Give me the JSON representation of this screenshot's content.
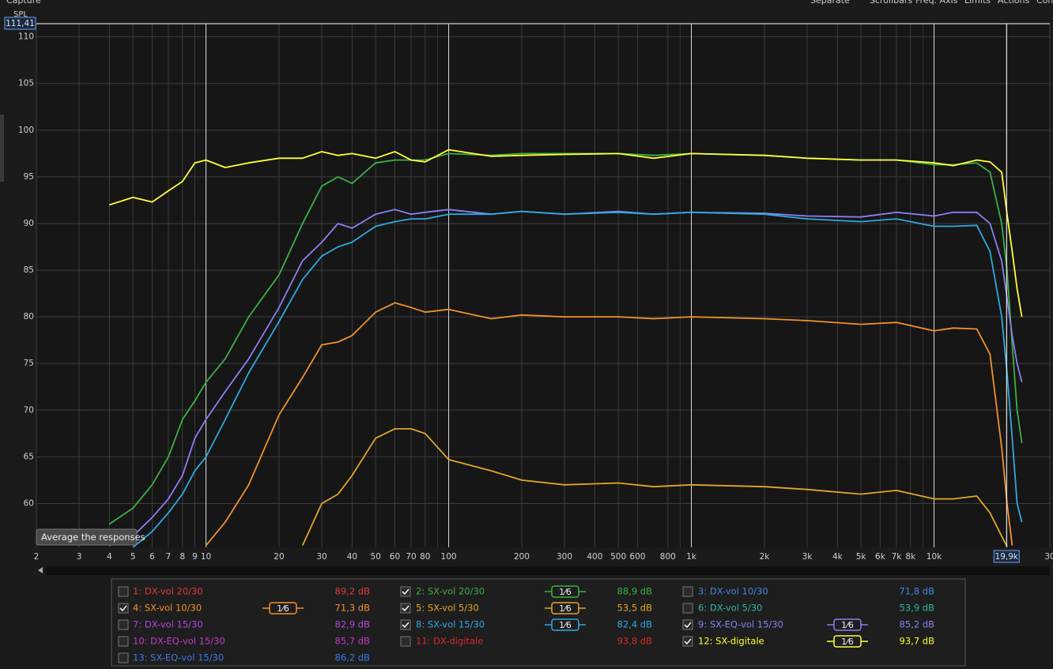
{
  "ui": {
    "menu": [
      "Capture",
      "Separate",
      "Scrollbars",
      "Freq. Axis",
      "Limits",
      "Actions",
      "Con"
    ],
    "y_axis_name": "SPL",
    "tooltip": "Average the responses"
  },
  "responses": [
    {
      "label": "1: DX-vol 20/30",
      "color": "#e03a3a",
      "checked": false,
      "level": "89,2 dB"
    },
    {
      "label": "2: SX-vol 20/30",
      "color": "#3cb043",
      "checked": true,
      "smoothing": "1⁄6",
      "level": "88,9 dB"
    },
    {
      "label": "3: DX-vol 10/30",
      "color": "#3f86e0",
      "checked": false,
      "level": "71,8 dB"
    },
    {
      "label": "4: SX-vol 10/30",
      "color": "#f0922e",
      "checked": true,
      "smoothing": "1⁄6",
      "level": "71,3 dB"
    },
    {
      "label": "5: SX-vol 5/30",
      "color": "#e3a52c",
      "checked": true,
      "smoothing": "1⁄6",
      "level": "53,5 dB"
    },
    {
      "label": "6: DX-vol 5/30",
      "color": "#2fb89c",
      "checked": false,
      "level": "53,9 dB"
    },
    {
      "label": "7: DX-vol 15/30",
      "color": "#b048e0",
      "checked": false,
      "level": "82,9 dB"
    },
    {
      "label": "8: SX-vol 15/30",
      "color": "#2fa9e0",
      "checked": true,
      "smoothing": "1⁄6",
      "level": "82,4 dB"
    },
    {
      "label": "9: SX-EQ-vol 15/30",
      "color": "#8a7ff0",
      "checked": true,
      "smoothing": "1⁄6",
      "level": "85,2 dB"
    },
    {
      "label": "10: DX-EQ-vol 15/30",
      "color": "#c23ac8",
      "checked": false,
      "level": "85,7 dB"
    },
    {
      "label": "11: DX-digitale",
      "color": "#d42a2a",
      "checked": false,
      "level": "93,8 dB"
    },
    {
      "label": "12: SX-digitale",
      "color": "#ffff3a",
      "checked": true,
      "smoothing": "1⁄6",
      "level": "93,7 dB"
    },
    {
      "label": "13: SX-EQ-vol 15/30",
      "color": "#3a78e8",
      "checked": false,
      "level": "86,2 dB"
    }
  ],
  "chart_data": {
    "type": "line",
    "xscale": "log",
    "xlim": [
      2,
      30000
    ],
    "ylim": [
      55.3,
      111.41
    ],
    "xticks": [
      2,
      3,
      4,
      5,
      6,
      7,
      8,
      9,
      10,
      20,
      30,
      40,
      50,
      60,
      70,
      80,
      100,
      200,
      300,
      400,
      500,
      600,
      800,
      {
        "value": 1000,
        "label": "1k"
      },
      {
        "value": 2000,
        "label": "2k"
      },
      {
        "value": 3000,
        "label": "3k"
      },
      {
        "value": 4000,
        "label": "4k"
      },
      {
        "value": 5000,
        "label": "5k"
      },
      {
        "value": 6000,
        "label": "6k"
      },
      {
        "value": 7000,
        "label": "7k"
      },
      {
        "value": 8000,
        "label": "8k"
      },
      {
        "value": 10000,
        "label": "10k"
      },
      {
        "value": 30000,
        "label": "30"
      }
    ],
    "xminor": [
      90,
      900,
      9000,
      20000
    ],
    "xmajor": [
      10,
      100,
      1000,
      10000
    ],
    "yticks": [
      60,
      65,
      70,
      75,
      80,
      85,
      90,
      95,
      100,
      105,
      110
    ],
    "grid": true,
    "cursor": {
      "x": 19900,
      "x_label": "19,9k",
      "y": 111.41,
      "y_label": "111,41"
    },
    "x": [
      4,
      5,
      6,
      7,
      8,
      9,
      10,
      12,
      15,
      20,
      25,
      30,
      35,
      40,
      50,
      60,
      70,
      80,
      100,
      150,
      200,
      300,
      500,
      700,
      1000,
      2000,
      3000,
      5000,
      7000,
      10000,
      12000,
      15000,
      17000,
      19000,
      20000,
      21000,
      22000,
      23000
    ],
    "series": [
      {
        "response": 1,
        "values": [
          57.8,
          59.5,
          62,
          65,
          69,
          71,
          73,
          75.5,
          80,
          84.5,
          90,
          94,
          95,
          94.3,
          96.5,
          96.8,
          96.8,
          96.8,
          97.5,
          97.3,
          97.5,
          97.5,
          97.5,
          97.3,
          97.5,
          97.3,
          97,
          96.8,
          96.8,
          96.3,
          96.3,
          96.5,
          95.5,
          90,
          85,
          77,
          70,
          66.5
        ]
      },
      {
        "response": 11,
        "values": [
          92,
          92.8,
          92.3,
          93.5,
          94.5,
          96.5,
          96.8,
          96,
          96.5,
          97,
          97,
          97.7,
          97.3,
          97.5,
          97,
          97.7,
          96.8,
          96.6,
          97.9,
          97.2,
          97.3,
          97.4,
          97.5,
          97,
          97.5,
          97.3,
          97,
          96.8,
          96.8,
          96.5,
          96.2,
          96.8,
          96.6,
          95.5,
          91,
          87,
          83,
          80
        ]
      },
      {
        "response": 8,
        "values": [
          55.5,
          56.5,
          58.5,
          60.5,
          63,
          67,
          69,
          72,
          75.5,
          81,
          86,
          88,
          90,
          89.5,
          91,
          91.5,
          91,
          91.2,
          91.5,
          91,
          91.3,
          91,
          91.3,
          91,
          91.2,
          91.1,
          90.8,
          90.7,
          91.2,
          90.8,
          91.2,
          91.2,
          90,
          86,
          82,
          78,
          75,
          73
        ]
      },
      {
        "response": 7,
        "values": [
          null,
          55.3,
          57,
          59,
          61,
          63.5,
          65,
          69,
          74,
          79.5,
          84,
          86.5,
          87.5,
          88,
          89.7,
          90.2,
          90.5,
          90.5,
          91,
          91,
          91.3,
          91,
          91.2,
          91,
          91.2,
          91,
          90.5,
          90.2,
          90.5,
          89.7,
          89.7,
          89.8,
          87,
          80,
          74,
          67,
          60,
          58
        ]
      },
      {
        "response": 3,
        "values": [
          null,
          null,
          null,
          null,
          null,
          null,
          55.5,
          58,
          62,
          69.5,
          73.5,
          77,
          77.3,
          78,
          80.5,
          81.5,
          81,
          80.5,
          80.8,
          79.8,
          80.2,
          80,
          80,
          79.8,
          80,
          79.8,
          79.6,
          79.2,
          79.4,
          78.5,
          78.8,
          78.7,
          76,
          66,
          60,
          55.5,
          null,
          null
        ]
      },
      {
        "response": 4,
        "values": [
          null,
          null,
          null,
          null,
          null,
          null,
          null,
          null,
          null,
          null,
          55.5,
          60,
          61,
          63,
          67,
          68,
          68,
          67.5,
          64.7,
          63.5,
          62.5,
          62,
          62.2,
          61.8,
          62,
          61.8,
          61.5,
          61,
          61.4,
          60.5,
          60.5,
          60.8,
          59,
          56.5,
          55.4,
          null,
          null,
          null
        ]
      }
    ]
  }
}
